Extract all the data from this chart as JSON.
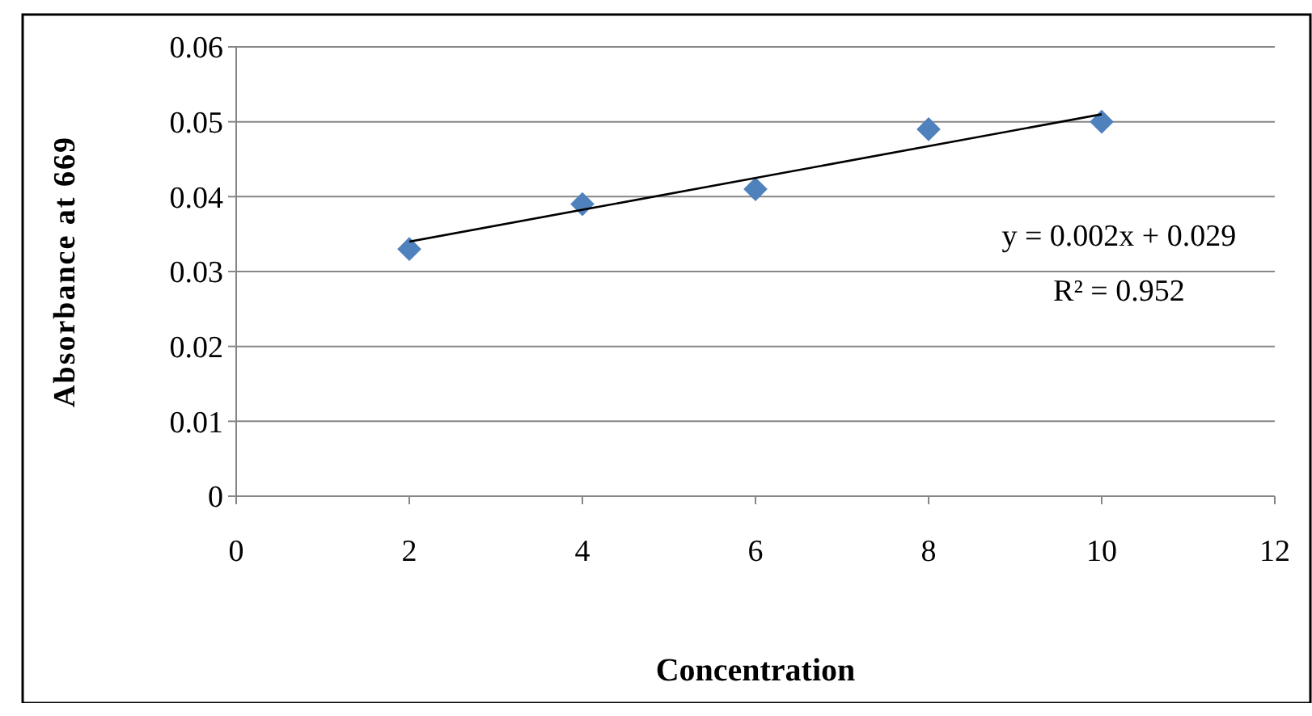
{
  "chart_data": {
    "type": "scatter",
    "xlabel": "Concentration",
    "ylabel": "Absorbance at 669",
    "xlim": [
      0,
      12
    ],
    "xticks": [
      0,
      2,
      4,
      6,
      8,
      10,
      12
    ],
    "ylim": [
      0,
      0.06
    ],
    "yticks": [
      0,
      0.01,
      0.02,
      0.03,
      0.04,
      0.05,
      0.06
    ],
    "grid": "y",
    "marker": "diamond",
    "series": [
      {
        "type": "scatter",
        "color": "#4f81bd",
        "x": [
          2,
          4,
          6,
          8,
          10
        ],
        "values": [
          0.033,
          0.039,
          0.041,
          0.049,
          0.05
        ]
      },
      {
        "type": "line",
        "color": "#000000",
        "marker": "none",
        "x": [
          2,
          10
        ],
        "values": [
          0.034,
          0.051
        ]
      }
    ],
    "annotations": [
      "y = 0.002x + 0.029",
      "R² = 0.952"
    ]
  }
}
